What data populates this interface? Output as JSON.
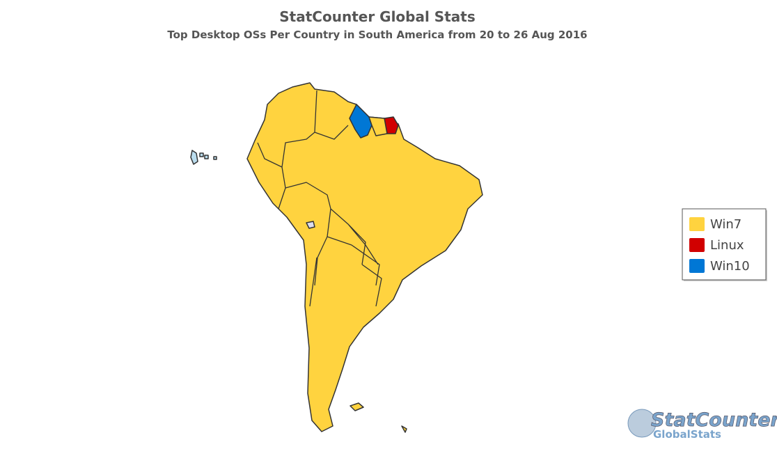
{
  "header": {
    "title": "StatCounter Global Stats",
    "subtitle": "Top Desktop OSs Per Country in South America from 20 to 26 Aug 2016"
  },
  "legend": [
    {
      "name": "Win7",
      "color": "#ffd33f"
    },
    {
      "name": "Linux",
      "color": "#d10000"
    },
    {
      "name": "Win10",
      "color": "#0077d5"
    }
  ],
  "logo": {
    "brand": "StatCounter",
    "tagline": "GlobalStats"
  }
}
